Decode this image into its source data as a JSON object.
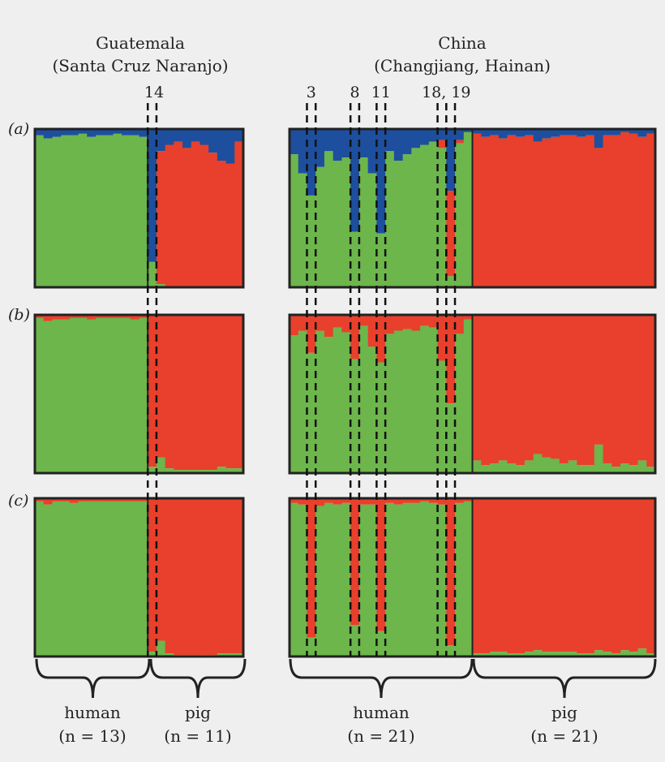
{
  "chart_data": {
    "type": "bar",
    "subtype": "stacked-admixture",
    "colors": {
      "green": "#6cb64c",
      "red": "#e8402c",
      "blue": "#1d4f9e",
      "frame": "#222222",
      "background": "#efefef"
    },
    "groups": [
      {
        "title": "Guatemala",
        "subtitle": "(Santa Cruz Naranjo)",
        "highlight_label": "14",
        "highlight_indices": [
          13
        ],
        "categories": [
          {
            "label": "human",
            "n_label": "(n = 13)"
          },
          {
            "label": "pig",
            "n_label": "(n = 11)"
          }
        ]
      },
      {
        "title": "China",
        "subtitle": "(Changjiang, Hainan)",
        "highlight_label": "3  8  11  18, 19",
        "highlight_indices": [
          2,
          7,
          10,
          17,
          18
        ],
        "categories": [
          {
            "label": "human",
            "n_label": "(n = 21)"
          },
          {
            "label": "pig",
            "n_label": "(n = 21)"
          }
        ]
      }
    ],
    "panels": [
      {
        "label": "(a)",
        "guatemala": {
          "green": [
            0.96,
            0.94,
            0.95,
            0.96,
            0.96,
            0.97,
            0.95,
            0.96,
            0.96,
            0.97,
            0.96,
            0.96,
            0.95,
            0.16,
            0.02,
            0.0,
            0.0,
            0.0,
            0.0,
            0.0,
            0.0,
            0.0,
            0.0,
            0.0
          ],
          "red": [
            0.0,
            0.0,
            0.0,
            0.0,
            0.0,
            0.0,
            0.0,
            0.0,
            0.0,
            0.0,
            0.0,
            0.0,
            0.0,
            0.0,
            0.84,
            0.9,
            0.92,
            0.88,
            0.92,
            0.9,
            0.85,
            0.8,
            0.78,
            0.92
          ]
        },
        "china": {
          "green": [
            0.84,
            0.72,
            0.58,
            0.76,
            0.86,
            0.8,
            0.82,
            0.35,
            0.82,
            0.72,
            0.34,
            0.86,
            0.8,
            0.84,
            0.88,
            0.9,
            0.92,
            0.88,
            0.07,
            0.91,
            0.98,
            0,
            0,
            0,
            0,
            0,
            0,
            0,
            0,
            0,
            0,
            0,
            0,
            0,
            0,
            0,
            0,
            0,
            0,
            0,
            0,
            0
          ],
          "red": [
            0,
            0,
            0,
            0,
            0,
            0,
            0,
            0,
            0,
            0,
            0,
            0,
            0,
            0,
            0,
            0,
            0,
            0.05,
            0.54,
            0.02,
            0.0,
            0.97,
            0.95,
            0.96,
            0.94,
            0.96,
            0.95,
            0.96,
            0.92,
            0.94,
            0.95,
            0.96,
            0.96,
            0.95,
            0.96,
            0.88,
            0.96,
            0.96,
            0.98,
            0.97,
            0.95,
            0.97
          ]
        }
      },
      {
        "label": "(b)",
        "guatemala": {
          "green": [
            0.98,
            0.96,
            0.97,
            0.97,
            0.98,
            0.98,
            0.97,
            0.98,
            0.98,
            0.98,
            0.98,
            0.97,
            0.98,
            0.04,
            0.1,
            0.03,
            0.02,
            0.02,
            0.02,
            0.02,
            0.02,
            0.04,
            0.03,
            0.03
          ]
        },
        "china": {
          "green": [
            0.87,
            0.9,
            0.76,
            0.9,
            0.86,
            0.92,
            0.89,
            0.72,
            0.93,
            0.8,
            0.7,
            0.88,
            0.9,
            0.91,
            0.9,
            0.93,
            0.92,
            0.71,
            0.44,
            0.88,
            0.97,
            0.08,
            0.05,
            0.06,
            0.08,
            0.06,
            0.05,
            0.08,
            0.12,
            0.1,
            0.09,
            0.06,
            0.08,
            0.05,
            0.05,
            0.18,
            0.06,
            0.04,
            0.06,
            0.05,
            0.08,
            0.04
          ]
        }
      },
      {
        "label": "(c)",
        "guatemala": {
          "green": [
            0.98,
            0.96,
            0.98,
            0.98,
            0.97,
            0.98,
            0.98,
            0.98,
            0.98,
            0.98,
            0.98,
            0.98,
            0.98,
            0.03,
            0.1,
            0.02,
            0.01,
            0.01,
            0.01,
            0.01,
            0.01,
            0.02,
            0.02,
            0.02
          ]
        },
        "china": {
          "green": [
            0.97,
            0.96,
            0.12,
            0.95,
            0.97,
            0.96,
            0.97,
            0.2,
            0.96,
            0.96,
            0.16,
            0.97,
            0.96,
            0.97,
            0.97,
            0.98,
            0.97,
            0.96,
            0.07,
            0.97,
            0.98,
            0.02,
            0.02,
            0.03,
            0.03,
            0.02,
            0.02,
            0.03,
            0.04,
            0.03,
            0.03,
            0.03,
            0.03,
            0.02,
            0.02,
            0.04,
            0.03,
            0.02,
            0.04,
            0.03,
            0.05,
            0.02
          ]
        }
      }
    ]
  }
}
